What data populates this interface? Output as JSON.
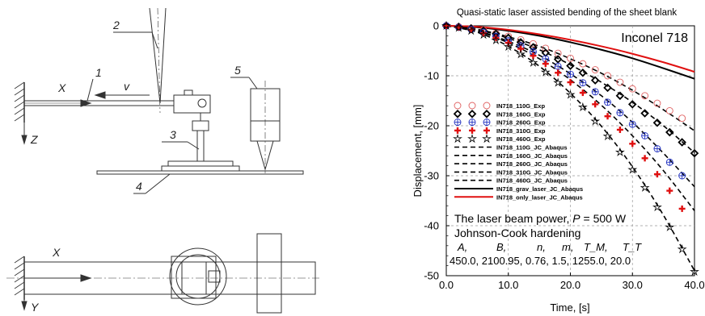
{
  "left_figure": {
    "top_labels": {
      "x": "X",
      "z": "Z",
      "v": "v",
      "n1": "1",
      "n2": "2",
      "n3": "3",
      "n4": "4",
      "n5": "5"
    },
    "bottom_labels": {
      "x": "X",
      "y": "Y"
    }
  },
  "chart_data": {
    "type": "line",
    "title": "Quasi-static laser assisted bending of the sheet blank",
    "xlabel": "Time, [s]",
    "ylabel": "Displacement, [mm]",
    "xlim": [
      0,
      40
    ],
    "ylim": [
      -50,
      0
    ],
    "xticks": [
      "0.0",
      "10.0",
      "20.0",
      "30.0",
      "40.0"
    ],
    "yticks": [
      "0",
      "-10",
      "-20",
      "-30",
      "-40",
      "-50"
    ],
    "grid": true,
    "legend_position": "left-middle",
    "material_label": "Inconel 718",
    "power_label_prefix": "The laser beam power, ",
    "power_symbol": "P",
    "power_value": " = 500 W",
    "jc_title": "Johnson-Cook hardening",
    "jc_params": {
      "headers": [
        "A,",
        "B,",
        "n,",
        "m,",
        "T_M,",
        "T_T"
      ],
      "values_line": "450.0, 2100.95, 0.76, 1.5, 1255.0, 20.0"
    },
    "series": [
      {
        "name": "IN718_110G_Exp",
        "marker": "circle",
        "color": "#e06060",
        "x": [
          0,
          2,
          4,
          6,
          8,
          10,
          12,
          14,
          16,
          18,
          20,
          22,
          24,
          26,
          28,
          30,
          32,
          34,
          36,
          38
        ],
        "y": [
          0,
          -0.2,
          -0.5,
          -0.9,
          -1.5,
          -2.1,
          -2.8,
          -3.6,
          -4.5,
          -5.5,
          -6.5,
          -7.6,
          -8.8,
          -10,
          -11.3,
          -12.6,
          -14,
          -15.5,
          -17,
          -18.5
        ]
      },
      {
        "name": "IN718_160G_Exp",
        "marker": "diamond",
        "color": "#000000",
        "x": [
          0,
          2,
          4,
          6,
          8,
          10,
          12,
          14,
          16,
          18,
          20,
          22,
          24,
          26,
          28,
          30,
          32,
          34,
          36,
          38,
          40
        ],
        "y": [
          0,
          -0.2,
          -0.5,
          -1,
          -1.6,
          -2.4,
          -3.3,
          -4.3,
          -5.4,
          -6.7,
          -8,
          -9.4,
          -10.9,
          -12.4,
          -14,
          -15.7,
          -17.5,
          -19.4,
          -21.3,
          -23.3,
          -25.5
        ]
      },
      {
        "name": "IN718_260G_Exp",
        "marker": "circle-plus",
        "color": "#2030c0",
        "x": [
          0,
          2,
          4,
          6,
          8,
          10,
          12,
          14,
          16,
          18,
          20,
          22,
          24,
          26,
          28,
          30,
          32,
          34,
          36,
          38
        ],
        "y": [
          0,
          -0.3,
          -0.7,
          -1.3,
          -2.1,
          -3,
          -4,
          -5.2,
          -6.6,
          -8.1,
          -9.7,
          -11.4,
          -13.2,
          -15.3,
          -17.4,
          -19.7,
          -22,
          -24.6,
          -27.3,
          -30
        ]
      },
      {
        "name": "IN718_310G_Exp",
        "marker": "plus",
        "color": "#e01010",
        "x": [
          0,
          2,
          4,
          6,
          8,
          10,
          12,
          14,
          16,
          18,
          20,
          22,
          24,
          26,
          28,
          30,
          32,
          34,
          36,
          38
        ],
        "y": [
          0,
          -0.3,
          -0.8,
          -1.5,
          -2.4,
          -3.4,
          -4.6,
          -6,
          -7.6,
          -9.4,
          -11.3,
          -13.4,
          -15.7,
          -18.1,
          -20.8,
          -23.6,
          -26.5,
          -29.7,
          -33,
          -36.6
        ]
      },
      {
        "name": "IN718_460G_Exp",
        "marker": "star",
        "color": "#000000",
        "x": [
          0,
          2,
          4,
          6,
          8,
          10,
          12,
          14,
          16,
          18,
          20,
          22,
          24,
          26,
          28,
          30,
          32,
          34,
          36,
          38,
          40
        ],
        "y": [
          0,
          -0.4,
          -1,
          -1.8,
          -2.9,
          -4.2,
          -5.7,
          -7.4,
          -9.3,
          -11.4,
          -13.8,
          -16.3,
          -19.1,
          -22.1,
          -25.3,
          -28.8,
          -32.4,
          -36.3,
          -40.3,
          -44.7,
          -49.2
        ]
      },
      {
        "name": "IN718_110G_JC_Abaqus",
        "style": "dashed",
        "color": "#000000",
        "x": [
          0,
          5,
          10,
          15,
          20,
          25,
          30,
          35,
          40
        ],
        "y": [
          0,
          -0.7,
          -2.2,
          -4.1,
          -6.6,
          -9.5,
          -12.9,
          -16.8,
          -21
        ]
      },
      {
        "name": "IN718_160G_JC_Abaqus",
        "style": "dashed",
        "color": "#000000",
        "x": [
          0,
          5,
          10,
          15,
          20,
          25,
          30,
          35,
          40
        ],
        "y": [
          0,
          -0.8,
          -2.5,
          -4.8,
          -7.8,
          -11.3,
          -15.3,
          -20,
          -25.4
        ]
      },
      {
        "name": "IN718_260G_JC_Abaqus",
        "style": "dashed",
        "color": "#000000",
        "x": [
          0,
          5,
          10,
          15,
          20,
          25,
          30,
          35,
          40
        ],
        "y": [
          0,
          -1,
          -3.1,
          -5.9,
          -9.6,
          -14,
          -19.3,
          -25.5,
          -32.2
        ]
      },
      {
        "name": "IN718_310G_JC_Abaqus",
        "style": "dashed",
        "color": "#000000",
        "x": [
          0,
          5,
          10,
          15,
          20,
          25,
          30,
          35,
          40
        ],
        "y": [
          0,
          -1.1,
          -3.4,
          -6.6,
          -10.8,
          -15.9,
          -22,
          -29,
          -37
        ]
      },
      {
        "name": "IN718_460G_JC_Abaqus",
        "style": "dashed",
        "color": "#000000",
        "x": [
          0,
          5,
          10,
          15,
          20,
          25,
          30,
          35,
          40
        ],
        "y": [
          0,
          -1.3,
          -4.1,
          -8.1,
          -13.5,
          -20.1,
          -28.2,
          -37.9,
          -49
        ]
      },
      {
        "name": "IN718_grav_laser_JC_Abaqus",
        "style": "solid",
        "color": "#000000",
        "x": [
          0,
          5,
          10,
          15,
          20,
          25,
          30,
          35,
          40
        ],
        "y": [
          0,
          -0.3,
          -1,
          -2,
          -3.3,
          -4.8,
          -6.5,
          -8.5,
          -10.6
        ]
      },
      {
        "name": "IN718_only_laser_JC_Abaqus",
        "style": "solid",
        "color": "#e01010",
        "x": [
          0,
          5,
          10,
          15,
          20,
          25,
          30,
          35,
          40
        ],
        "y": [
          0,
          -0.2,
          -0.8,
          -1.7,
          -2.8,
          -4.1,
          -5.6,
          -7.3,
          -9.2
        ]
      }
    ]
  }
}
